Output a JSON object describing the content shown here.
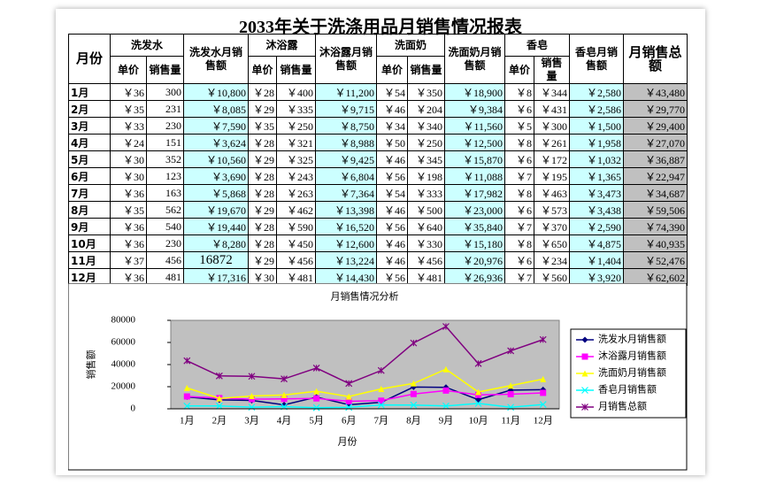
{
  "title": "2033年关于洗涤用品月销售情况报表",
  "table": {
    "header": [
      "月份",
      "洗发水",
      "洗发水月销售额",
      "沐浴露",
      "沐浴露月销售额",
      "洗面奶",
      "洗面奶月销售额",
      "香皂",
      "香皂月销售额",
      "月销售总额"
    ],
    "subheader": [
      "单价",
      "销售量",
      "单价",
      "销售量",
      "单价",
      "销售量",
      "单价",
      "销售量"
    ],
    "rows": [
      [
        "1月",
        "￥36",
        "300",
        "￥10,800",
        "￥28",
        "￥400",
        "￥11,200",
        "￥54",
        "￥350",
        "￥18,900",
        "￥8",
        "￥344",
        "￥2,580",
        "￥43,480"
      ],
      [
        "2月",
        "￥35",
        "231",
        "￥8,085",
        "￥29",
        "￥335",
        "￥9,715",
        "￥46",
        "￥204",
        "￥9,384",
        "￥6",
        "￥431",
        "￥2,586",
        "￥29,770"
      ],
      [
        "3月",
        "￥33",
        "230",
        "￥7,590",
        "￥35",
        "￥250",
        "￥8,750",
        "￥34",
        "￥340",
        "￥11,560",
        "￥5",
        "￥300",
        "￥1,500",
        "￥29,400"
      ],
      [
        "4月",
        "￥24",
        "151",
        "￥3,624",
        "￥28",
        "￥321",
        "￥8,988",
        "￥50",
        "￥250",
        "￥12,500",
        "￥8",
        "￥261",
        "￥1,958",
        "￥27,070"
      ],
      [
        "5月",
        "￥30",
        "352",
        "￥10,560",
        "￥29",
        "￥325",
        "￥9,425",
        "￥46",
        "￥345",
        "￥15,870",
        "￥6",
        "￥172",
        "￥1,032",
        "￥36,887"
      ],
      [
        "6月",
        "￥30",
        "123",
        "￥3,690",
        "￥28",
        "￥243",
        "￥6,804",
        "￥56",
        "￥198",
        "￥11,088",
        "￥7",
        "￥195",
        "￥1,365",
        "￥22,947"
      ],
      [
        "7月",
        "￥36",
        "163",
        "￥5,868",
        "￥28",
        "￥263",
        "￥7,364",
        "￥54",
        "￥333",
        "￥17,982",
        "￥8",
        "￥463",
        "￥3,473",
        "￥34,687"
      ],
      [
        "8月",
        "￥35",
        "562",
        "￥19,670",
        "￥29",
        "￥462",
        "￥13,398",
        "￥46",
        "￥500",
        "￥23,000",
        "￥6",
        "￥573",
        "￥3,438",
        "￥59,506"
      ],
      [
        "9月",
        "￥36",
        "540",
        "￥19,440",
        "￥28",
        "￥590",
        "￥16,520",
        "￥56",
        "￥640",
        "￥35,840",
        "￥7",
        "￥370",
        "￥2,590",
        "￥74,390"
      ],
      [
        "10月",
        "￥36",
        "230",
        "￥8,280",
        "￥28",
        "￥450",
        "￥12,600",
        "￥46",
        "￥330",
        "￥15,180",
        "￥8",
        "￥650",
        "￥4,875",
        "￥40,935"
      ],
      [
        "11月",
        "￥37",
        "456",
        "16872",
        "￥29",
        "￥456",
        "￥13,224",
        "￥46",
        "￥456",
        "￥20,976",
        "￥6",
        "￥234",
        "￥1,404",
        "￥52,476"
      ],
      [
        "12月",
        "￥36",
        "481",
        "￥17,316",
        "￥30",
        "￥481",
        "￥14,430",
        "￥56",
        "￥481",
        "￥26,936",
        "￥7",
        "￥560",
        "￥3,920",
        "￥62,602"
      ]
    ]
  },
  "chart_data": {
    "type": "line",
    "title": "月销售情况分析",
    "x_label": "月份",
    "y_label": "销售额",
    "categories": [
      "1月",
      "2月",
      "3月",
      "4月",
      "5月",
      "6月",
      "7月",
      "8月",
      "9月",
      "10月",
      "11月",
      "12月"
    ],
    "ylim": [
      0,
      80000
    ],
    "yticks": [
      0,
      20000,
      40000,
      60000,
      80000
    ],
    "grid": false,
    "legend": "right",
    "series": [
      {
        "name": "洗发水月销售额",
        "color": "#000080",
        "marker": "diamond",
        "values": [
          10800,
          8085,
          7590,
          3624,
          10560,
          3690,
          5868,
          19670,
          19440,
          8280,
          16872,
          17316
        ]
      },
      {
        "name": "沐浴露月销售额",
        "color": "#ff00ff",
        "marker": "square",
        "values": [
          11200,
          9715,
          8750,
          8988,
          9425,
          6804,
          7364,
          13398,
          16520,
          12600,
          13224,
          14430
        ]
      },
      {
        "name": "洗面奶月销售额",
        "color": "#ffff00",
        "marker": "triangle",
        "values": [
          18900,
          9384,
          11560,
          12500,
          15870,
          11088,
          17982,
          23000,
          35840,
          15180,
          20976,
          26936
        ]
      },
      {
        "name": "香皂月销售额",
        "color": "#00ffff",
        "marker": "x",
        "values": [
          2580,
          2586,
          1500,
          1958,
          1032,
          1365,
          3473,
          3438,
          2590,
          4875,
          1404,
          3920
        ]
      },
      {
        "name": "月销售总额",
        "color": "#800080",
        "marker": "star",
        "values": [
          43480,
          29770,
          29400,
          27070,
          36887,
          22947,
          34687,
          59506,
          74390,
          40935,
          52476,
          62602
        ]
      }
    ]
  }
}
